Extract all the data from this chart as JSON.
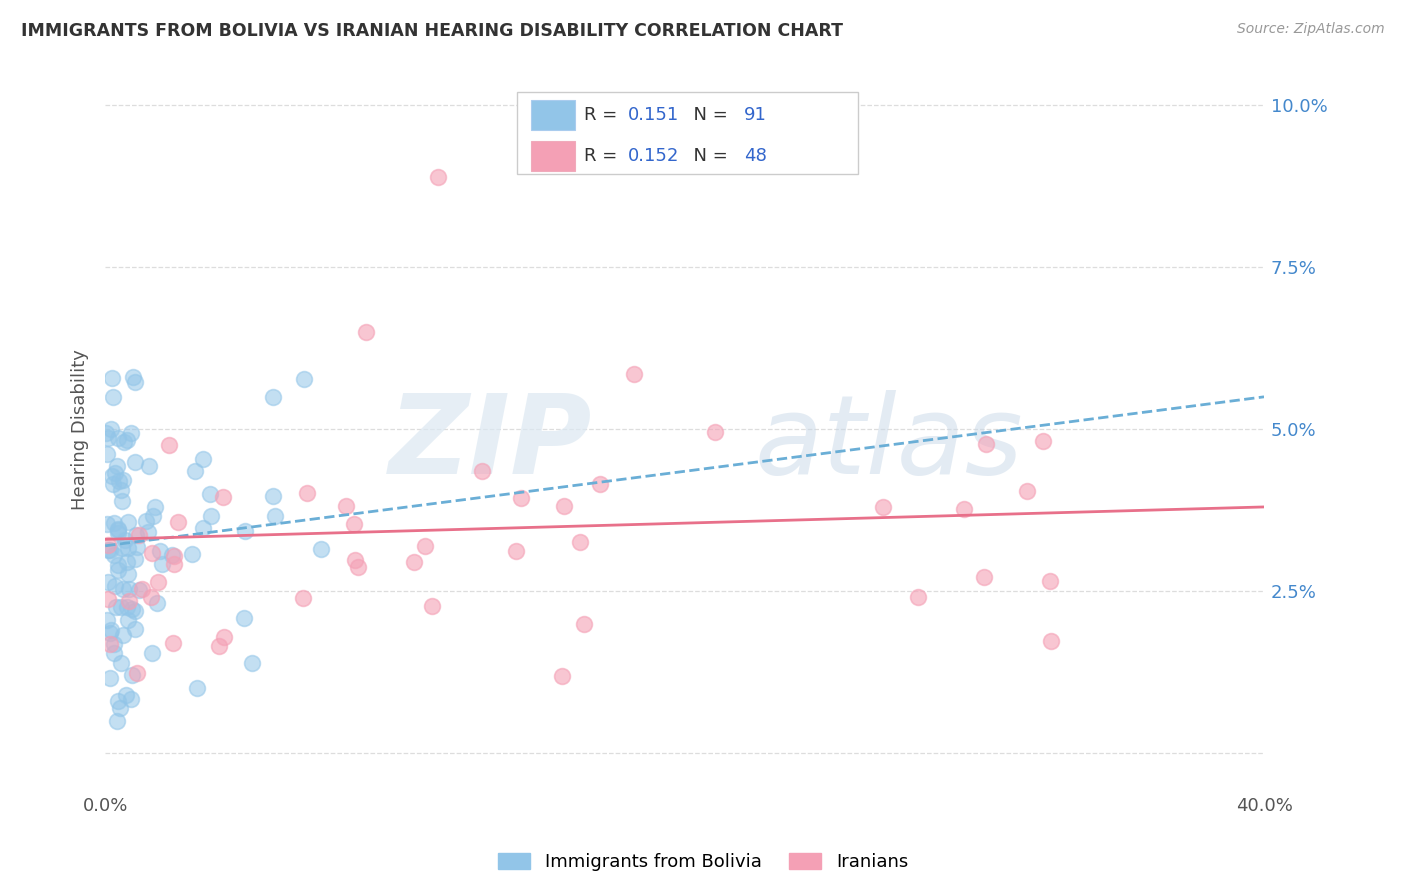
{
  "title": "IMMIGRANTS FROM BOLIVIA VS IRANIAN HEARING DISABILITY CORRELATION CHART",
  "source": "Source: ZipAtlas.com",
  "xlabel_bolivia": "Immigrants from Bolivia",
  "xlabel_iranians": "Iranians",
  "ylabel": "Hearing Disability",
  "xlim": [
    0.0,
    0.4
  ],
  "ylim": [
    -0.005,
    0.105
  ],
  "ytick_pos": [
    0.0,
    0.025,
    0.05,
    0.075,
    0.1
  ],
  "ytick_labels": [
    "",
    "2.5%",
    "5.0%",
    "7.5%",
    "10.0%"
  ],
  "xtick_pos": [
    0.0,
    0.05,
    0.1,
    0.15,
    0.2,
    0.25,
    0.3,
    0.35,
    0.4
  ],
  "xtick_labels": [
    "0.0%",
    "",
    "",
    "",
    "",
    "",
    "",
    "",
    "40.0%"
  ],
  "legend_r_bolivia": "0.151",
  "legend_n_bolivia": "91",
  "legend_r_iranians": "0.152",
  "legend_n_iranians": "48",
  "color_bolivia": "#92c5e8",
  "color_iranians": "#f4a0b5",
  "trendline_bolivia_color": "#6aaed6",
  "trendline_iranians_color": "#e8708a",
  "legend_text_color": "#3366cc",
  "legend_n_color": "#3366cc",
  "watermark_color": "#dde8f0",
  "title_color": "#333333",
  "source_color": "#999999",
  "grid_color": "#dddddd",
  "ylabel_color": "#555555",
  "ytick_color": "#4488cc"
}
